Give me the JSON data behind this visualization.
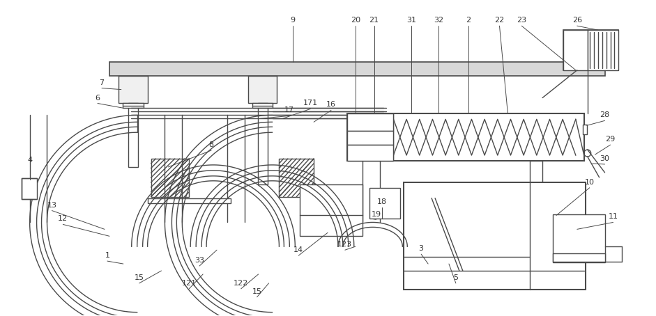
{
  "lc": "#4a4a4a",
  "lw": 1.0,
  "fig_w": 9.41,
  "fig_h": 4.54,
  "dpi": 100
}
